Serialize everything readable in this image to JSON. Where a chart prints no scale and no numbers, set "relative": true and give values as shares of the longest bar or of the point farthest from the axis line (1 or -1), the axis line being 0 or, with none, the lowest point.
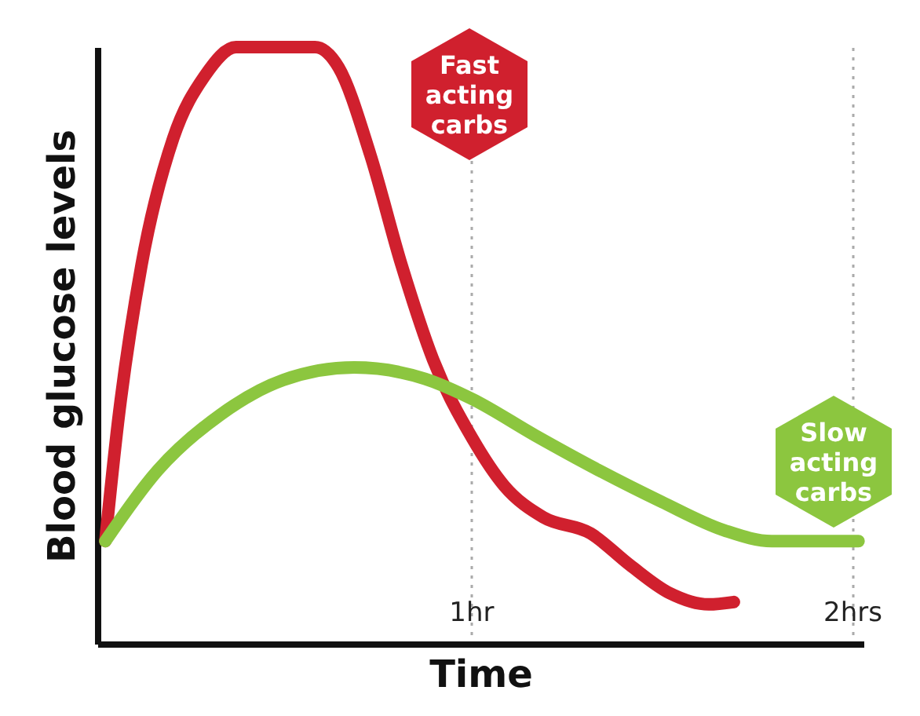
{
  "chart_data": {
    "type": "line",
    "relative": true,
    "xlabel": "Time",
    "ylabel": "Blood glucose levels",
    "xlim": [
      0.02,
      2.03
    ],
    "xticks": [
      {
        "value": 1,
        "label": "1hr"
      },
      {
        "value": 2,
        "label": "2hrs"
      }
    ],
    "grid": "x",
    "line_style": "solid",
    "marker": "none",
    "legend": false,
    "series": [
      {
        "name": "Fast acting carbs",
        "color": "#d0202e",
        "x": [
          0.041,
          0.074,
          0.136,
          0.219,
          0.302,
          0.384,
          0.591,
          0.653,
          0.736,
          0.818,
          0.901,
          1.004,
          1.087,
          1.19,
          1.314,
          1.417,
          1.521,
          1.624,
          1.69
        ],
        "values": [
          0.172,
          0.37,
          0.635,
          0.847,
          0.952,
          1,
          1,
          0.966,
          0.82,
          0.635,
          0.476,
          0.344,
          0.265,
          0.212,
          0.185,
          0.132,
          0.085,
          0.066,
          0.07
        ]
      },
      {
        "name": "Slow acting carbs",
        "color": "#8cc63f",
        "x": [
          0.041,
          0.179,
          0.343,
          0.508,
          0.694,
          0.88,
          1.004,
          1.169,
          1.335,
          1.5,
          1.665,
          1.789,
          2.017
        ],
        "values": [
          0.172,
          0.291,
          0.384,
          0.442,
          0.463,
          0.444,
          0.41,
          0.349,
          0.291,
          0.238,
          0.19,
          0.172,
          0.172
        ]
      }
    ]
  }
}
